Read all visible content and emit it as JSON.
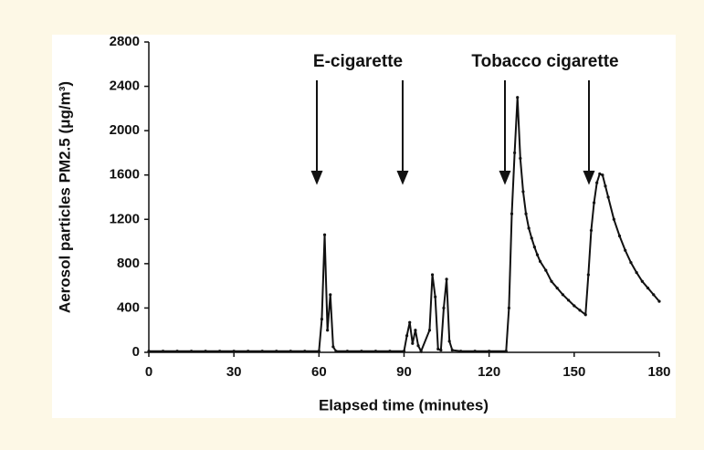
{
  "chart_data": {
    "type": "line",
    "xlabel": "Elapsed time (minutes)",
    "ylabel": "Aerosol particles PM2.5 (μg/m³)",
    "annotations": [
      "E-cigarette",
      "Tobacco cigarette"
    ],
    "xlim": [
      0,
      180
    ],
    "xticks": [
      0,
      30,
      60,
      90,
      120,
      150,
      180
    ],
    "ylim": [
      0,
      2800
    ],
    "yticks": [
      0,
      400,
      800,
      1200,
      1600,
      2000,
      2400,
      2800
    ],
    "color": "#111111",
    "x": [
      0,
      5,
      10,
      15,
      20,
      25,
      30,
      35,
      40,
      45,
      50,
      55,
      60,
      61,
      62,
      63,
      64,
      65,
      66,
      70,
      75,
      80,
      85,
      90,
      91,
      92,
      93,
      94,
      95,
      96,
      99,
      100,
      101,
      102,
      103,
      104,
      105,
      106,
      107,
      110,
      115,
      120,
      126,
      127,
      128,
      129,
      130,
      131,
      132,
      133,
      134,
      135,
      136,
      137,
      138,
      140,
      142,
      144,
      146,
      148,
      150,
      152,
      154,
      155,
      156,
      157,
      158,
      159,
      160,
      161,
      162,
      164,
      166,
      168,
      170,
      172,
      174,
      176,
      178,
      180
    ],
    "values": [
      10,
      10,
      10,
      10,
      10,
      10,
      10,
      10,
      10,
      10,
      10,
      10,
      10,
      300,
      1060,
      200,
      520,
      50,
      10,
      10,
      10,
      10,
      10,
      10,
      150,
      270,
      80,
      200,
      60,
      10,
      200,
      700,
      500,
      30,
      20,
      400,
      660,
      100,
      20,
      10,
      10,
      10,
      10,
      400,
      1250,
      1800,
      2300,
      1750,
      1450,
      1250,
      1120,
      1030,
      950,
      880,
      820,
      740,
      640,
      580,
      520,
      470,
      420,
      380,
      340,
      700,
      1100,
      1350,
      1530,
      1610,
      1600,
      1500,
      1400,
      1200,
      1050,
      920,
      810,
      720,
      640,
      580,
      520,
      460
    ]
  }
}
